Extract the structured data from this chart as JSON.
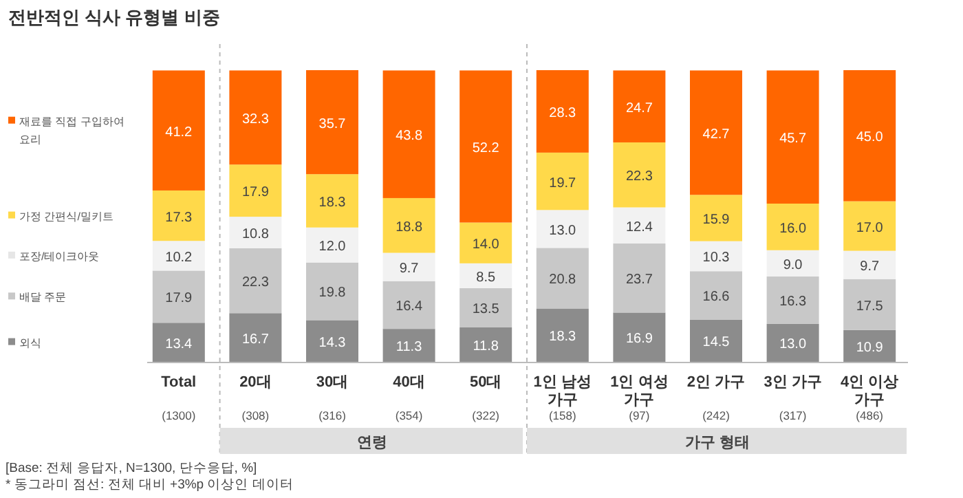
{
  "chart_data": {
    "type": "bar",
    "stacked": true,
    "title": "전반적인 식사 유형별 비중",
    "categories": [
      "Total",
      "20대",
      "30대",
      "40대",
      "50대",
      "1인 남성\n가구",
      "1인 여성\n가구",
      "2인 가구",
      "3인 가구",
      "4인 이상\n가구"
    ],
    "series": [
      {
        "name": "외식",
        "color": "#8c8c8c",
        "values": [
          13.4,
          16.7,
          14.3,
          11.3,
          11.8,
          18.3,
          16.9,
          14.5,
          13.0,
          10.9
        ],
        "value_labels": [
          "13.4",
          "16.7",
          "14.3",
          "11.3",
          "11.8",
          "18.3",
          "16.9",
          "14.5",
          "13.0",
          "10.9"
        ]
      },
      {
        "name": "배달 주문",
        "color": "#c8c8c8",
        "values": [
          17.9,
          22.3,
          19.8,
          16.4,
          13.5,
          20.8,
          23.7,
          16.6,
          16.3,
          17.5
        ],
        "value_labels": [
          "17.9",
          "22.3",
          "19.8",
          "16.4",
          "13.5",
          "20.8",
          "23.7",
          "16.6",
          "16.3",
          "17.5"
        ]
      },
      {
        "name": "포장/테이크아웃",
        "color": "#f2f2f2",
        "values": [
          10.2,
          10.8,
          12.0,
          9.7,
          8.5,
          13.0,
          12.4,
          10.3,
          9.0,
          9.7
        ],
        "value_labels": [
          "10.2",
          "10.8",
          "12.0",
          "9.7",
          "8.5",
          "13.0",
          "12.4",
          "10.3",
          "9.0",
          "9.7"
        ]
      },
      {
        "name": "가정 간편식/밀키트",
        "color": "#ffd94a",
        "values": [
          17.3,
          17.9,
          18.3,
          18.8,
          14.0,
          19.7,
          22.3,
          15.9,
          16.0,
          17.0
        ],
        "value_labels": [
          "17.3",
          "17.9",
          "18.3",
          "18.8",
          "14.0",
          "19.7",
          "22.3",
          "15.9",
          "16.0",
          "17.0"
        ]
      },
      {
        "name": "재료를 직접 구입하여 요리",
        "color": "#ff6600",
        "values": [
          41.2,
          32.3,
          35.7,
          43.8,
          52.2,
          28.3,
          24.7,
          42.7,
          45.7,
          45.0
        ],
        "value_labels": [
          "41.2",
          "32.3",
          "35.7",
          "43.8",
          "52.2",
          "28.3",
          "24.7",
          "42.7",
          "45.7",
          "45.0"
        ]
      }
    ],
    "legend": "left",
    "annotations": [
      "(1300)",
      "(308)",
      "(316)",
      "(354)",
      "(322)",
      "(158)",
      "(97)",
      "(242)",
      "(317)",
      "(486)",
      "연령",
      "가구 형태",
      "[Base: 전체 응답자, N=1300, 단수응답, %]",
      "* 동그라미 점선: 전체 대비 +3%p 이상인 데이터"
    ]
  }
}
